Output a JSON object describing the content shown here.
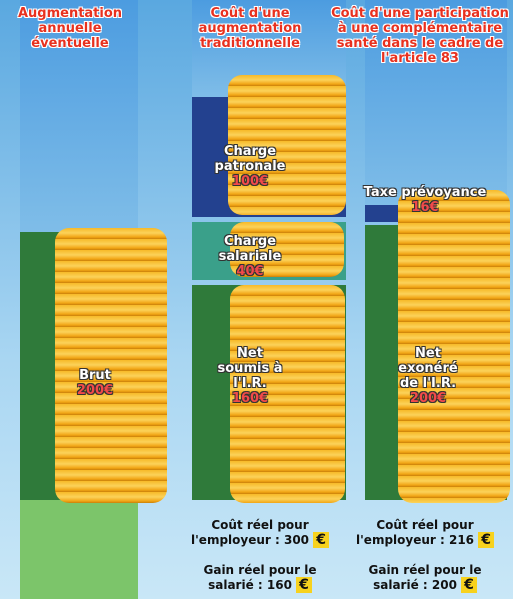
{
  "columns": [
    {
      "heading": "Augmentation annuelle éventuelle",
      "segments": [
        {
          "label": "Brut",
          "amount": "200€"
        }
      ]
    },
    {
      "heading": "Coût d'une augmentation traditionnelle",
      "segments": [
        {
          "label": "Charge patronale",
          "amount": "100€"
        },
        {
          "label": "Charge salariale",
          "amount": "40€"
        },
        {
          "label": "Net soumis à l'I.R.",
          "amount": "160€"
        }
      ],
      "employer_cost": {
        "label": "Coût réel pour l'employeur :",
        "amount": "300",
        "currency": "€"
      },
      "employee_gain": {
        "label": "Gain réel pour le salarié :",
        "amount": "160",
        "currency": "€"
      }
    },
    {
      "heading": "Coût d'une participation à une complémentaire santé dans le cadre de l'article 83",
      "segments": [
        {
          "label": "Taxe prévoyance",
          "amount": "16€"
        },
        {
          "label": "Net exonéré de l'I.R.",
          "amount": "200€"
        }
      ],
      "employer_cost": {
        "label": "Coût réel pour l'employeur :",
        "amount": "216",
        "currency": "€"
      },
      "employee_gain": {
        "label": "Gain réel pour le salarié :",
        "amount": "200",
        "currency": "€"
      }
    }
  ]
}
